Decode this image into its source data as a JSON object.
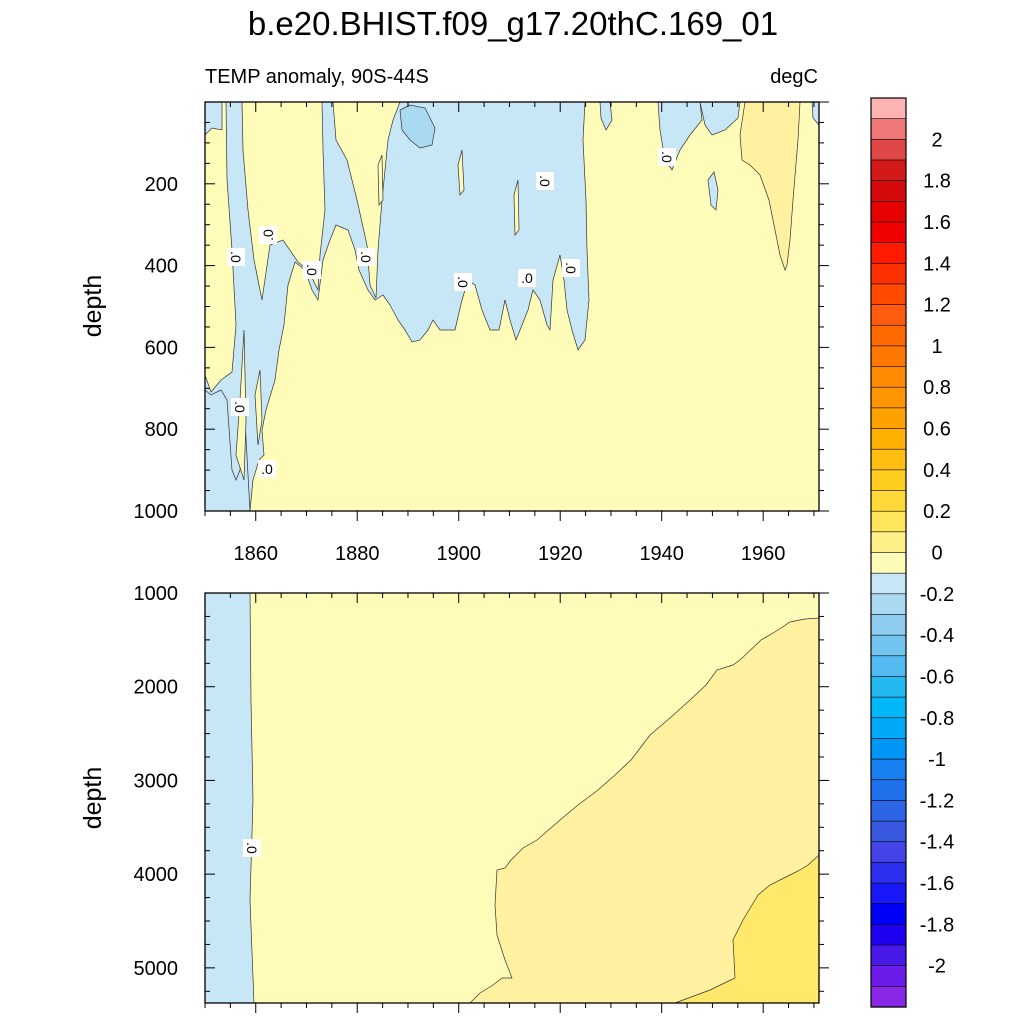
{
  "title": "b.e20.BHIST.f09_g17.20thC.169_01",
  "subtitle_left": "TEMP anomaly, 90S-44S",
  "subtitle_right": "degC",
  "colors": {
    "zero_to_pos": "#fffbb8",
    "pos_02": "#fff1a0",
    "pos_04": "#ffe86a",
    "neg_0": "#c7e6f6",
    "neg_02": "#a9daf2",
    "contour": "#333333"
  },
  "chart_data": [
    {
      "type": "contour",
      "panel": "upper",
      "xlabel": "",
      "ylabel": "depth",
      "xlim": [
        1850,
        1971
      ],
      "ylim": [
        1000,
        0
      ],
      "xticks": [
        "1860",
        "1880",
        "1900",
        "1920",
        "1940",
        "1960"
      ],
      "yticks": [
        "200",
        "400",
        "600",
        "800",
        "1000"
      ],
      "contour_labels": [
        ".0",
        ".0",
        ".0",
        ".0",
        ".0",
        ".0",
        ".0",
        ".0",
        ".0",
        ".0",
        ".0"
      ]
    },
    {
      "type": "contour",
      "panel": "lower",
      "xlabel": "",
      "ylabel": "depth",
      "xlim": [
        1850,
        1971
      ],
      "ylim": [
        1000,
        5375
      ],
      "yticks": [
        "1000",
        "2000",
        "3000",
        "4000",
        "5000"
      ],
      "contour_labels": [
        ".0"
      ]
    },
    {
      "type": "colorbar",
      "levels": [
        2.2,
        2.1,
        2.0,
        1.9,
        1.8,
        1.7,
        1.6,
        1.5,
        1.4,
        1.3,
        1.2,
        1.1,
        1.0,
        0.9,
        0.8,
        0.7,
        0.6,
        0.5,
        0.4,
        0.3,
        0.2,
        0.1,
        0.0,
        -0.1,
        -0.2,
        -0.3,
        -0.4,
        -0.5,
        -0.6,
        -0.7,
        -0.8,
        -0.9,
        -1.0,
        -1.1,
        -1.2,
        -1.3,
        -1.4,
        -1.5,
        -1.6,
        -1.7,
        -1.8,
        -1.9,
        -2.0,
        -2.1
      ],
      "colors": [
        "#ffb4b4",
        "#f07878",
        "#e04848",
        "#d21818",
        "#d40a0a",
        "#e60000",
        "#f00000",
        "#ff1a00",
        "#ff3000",
        "#ff4a00",
        "#ff5c10",
        "#ff6a00",
        "#ff7800",
        "#ff8a00",
        "#ff9500",
        "#ffa200",
        "#ffb000",
        "#ffbe10",
        "#ffcc20",
        "#ffd93a",
        "#ffe55a",
        "#fff08a",
        "#fffbb8",
        "#c7e6f6",
        "#a9daf2",
        "#8ecdef",
        "#72c4ef",
        "#52baf0",
        "#24b8f0",
        "#00b8f8",
        "#00a8f8",
        "#0096f8",
        "#1880f0",
        "#2070ec",
        "#2c66e6",
        "#3858e0",
        "#4444e8",
        "#2e30f0",
        "#1818f8",
        "#0000f8",
        "#2000f0",
        "#4818e8",
        "#6c1ce8",
        "#8a28e8"
      ],
      "tick_labels": [
        "2",
        "1.8",
        "1.6",
        "1.4",
        "1.2",
        "1",
        "0.8",
        "0.6",
        "0.4",
        "0.2",
        "0",
        "-0.2",
        "-0.4",
        "-0.6",
        "-0.8",
        "-1",
        "-1.2",
        "-1.4",
        "-1.6",
        "-1.8",
        "-2"
      ],
      "tick_values": [
        2,
        1.8,
        1.6,
        1.4,
        1.2,
        1,
        0.8,
        0.6,
        0.4,
        0.2,
        0,
        -0.2,
        -0.4,
        -0.6,
        -0.8,
        -1,
        -1.2,
        -1.4,
        -1.6,
        -1.8,
        -2
      ]
    }
  ]
}
